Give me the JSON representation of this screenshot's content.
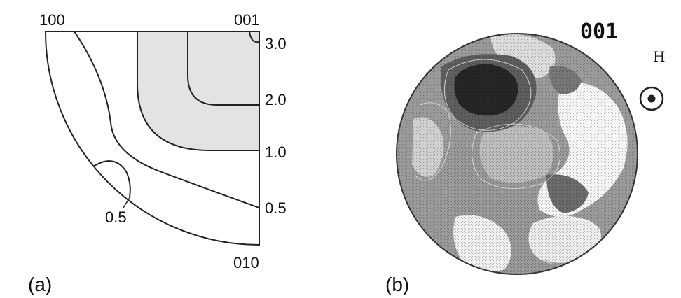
{
  "panel_a": {
    "label": "(a)",
    "corner_labels": {
      "top_left": "100",
      "top_right": "001",
      "bottom": "010"
    },
    "scale_labels": [
      "3.0",
      "2.0",
      "1.0",
      "0.5"
    ],
    "inner_contour_label": "0.5",
    "shaded_fill": "#e3e3e3"
  },
  "panel_b": {
    "label": "(b)",
    "pole_label": "001",
    "field_label": "H",
    "field_symbol": "out-of-plane-dot-icon",
    "pole_figure_colors": [
      "#9a9a9a",
      "#5e5e5e",
      "#262626",
      "#bdbdbd",
      "#f4f4f4"
    ]
  }
}
